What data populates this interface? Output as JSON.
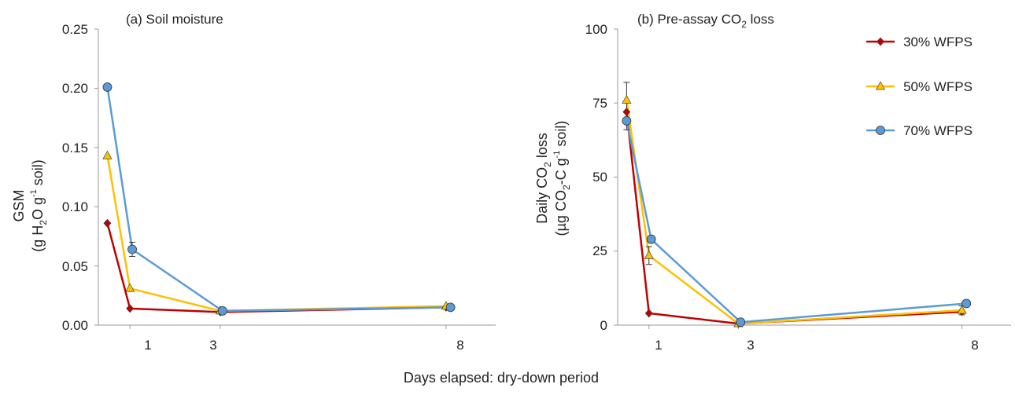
{
  "figure": {
    "shared_xlabel": "Days elapsed: dry-down period",
    "legend": [
      {
        "label": "30% WFPS",
        "color": "#c00000",
        "marker": "diamond"
      },
      {
        "label": "50% WFPS",
        "color": "#ffc000",
        "marker": "triangle"
      },
      {
        "label": "70% WFPS",
        "color": "#5b9bd5",
        "marker": "circle"
      }
    ]
  },
  "chart_data": [
    {
      "type": "line",
      "panel": "a",
      "title": "(a) Soil moisture",
      "ylabel_line1": "GSM",
      "ylabel_line2_parts": [
        "(g H",
        "2",
        "O g",
        "-1",
        " soil)"
      ],
      "xticks": [
        "1",
        "3",
        "8"
      ],
      "yticks": [
        "0.00",
        "0.05",
        "0.10",
        "0.15",
        "0.20",
        "0.25"
      ],
      "xlim": [
        0.3,
        9.1
      ],
      "ylim": [
        0,
        0.25
      ],
      "grid": false,
      "series": [
        {
          "name": "30% WFPS",
          "color": "#c00000",
          "marker": "diamond",
          "x": [
            0.5,
            1,
            3,
            8
          ],
          "y": [
            0.086,
            0.014,
            0.011,
            0.015
          ],
          "err": [
            0,
            0,
            0,
            0
          ]
        },
        {
          "name": "50% WFPS",
          "color": "#ffc000",
          "marker": "triangle",
          "x": [
            0.5,
            1,
            3,
            8
          ],
          "y": [
            0.143,
            0.031,
            0.012,
            0.016
          ],
          "err": [
            0,
            0,
            0,
            0
          ]
        },
        {
          "name": "70% WFPS",
          "color": "#5b9bd5",
          "marker": "circle",
          "x": [
            0.5,
            1.05,
            3.05,
            8.1
          ],
          "y": [
            0.201,
            0.064,
            0.012,
            0.015
          ],
          "err": [
            0,
            0.006,
            0,
            0
          ]
        }
      ]
    },
    {
      "type": "line",
      "panel": "b",
      "title_parts": [
        "(b) Pre-assay CO",
        "2",
        " loss"
      ],
      "ylabel_line1_parts": [
        "Daily CO",
        "2",
        " loss"
      ],
      "ylabel_line2_parts": [
        "(µg CO",
        "2",
        "-C g",
        "-1",
        " soil)"
      ],
      "xticks": [
        "1",
        "3",
        "8"
      ],
      "yticks": [
        "0",
        "25",
        "50",
        "75",
        "100"
      ],
      "xlim": [
        0.3,
        9.1
      ],
      "ylim": [
        0,
        100
      ],
      "grid": false,
      "series": [
        {
          "name": "30% WFPS",
          "color": "#c00000",
          "marker": "diamond",
          "x": [
            0.5,
            1,
            3,
            8
          ],
          "y": [
            72,
            4,
            0.5,
            4.5
          ],
          "err": [
            0,
            0,
            0,
            0
          ]
        },
        {
          "name": "50% WFPS",
          "color": "#ffc000",
          "marker": "triangle",
          "x": [
            0.5,
            1,
            3,
            8
          ],
          "y": [
            76,
            23.5,
            0.5,
            5
          ],
          "err": [
            6,
            3,
            0,
            1.5
          ]
        },
        {
          "name": "70% WFPS",
          "color": "#5b9bd5",
          "marker": "circle",
          "x": [
            0.5,
            1.05,
            3.05,
            8.1
          ],
          "y": [
            69,
            29,
            1,
            7.3
          ],
          "err": [
            3,
            0,
            0,
            0
          ]
        }
      ]
    }
  ]
}
